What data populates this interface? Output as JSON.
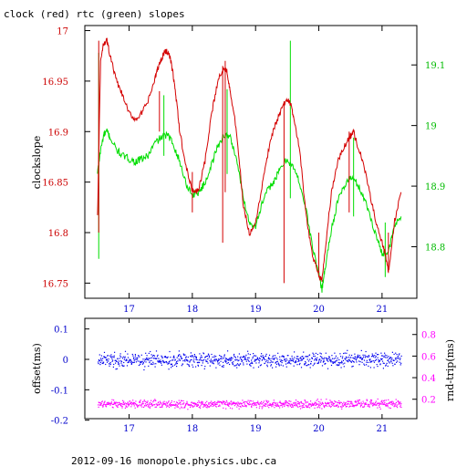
{
  "title": "clock (red) rtc (green) slopes",
  "footer": "2012-09-16  monopole.physics.ubc.ca",
  "colors": {
    "clock": "#d40000",
    "rtc": "#00dd00",
    "offset": "#0000ee",
    "rndtrip": "#ff00ff",
    "left_axis_top": "#cc0000",
    "right_axis_top": "#00bb00",
    "left_axis_bottom": "#0000cc",
    "right_axis_bottom": "#ff00ff",
    "frame": "#000000"
  },
  "chart_data": [
    {
      "type": "line",
      "ylabel": "clockslope",
      "xlim": [
        16.3,
        21.55
      ],
      "ylim": [
        16.735,
        17.005
      ],
      "y2lim": [
        18.715,
        19.165
      ],
      "xticks": [
        17,
        18,
        19,
        20,
        21
      ],
      "yticks": [
        16.75,
        16.8,
        16.85,
        16.9,
        16.95,
        17
      ],
      "ytick_labels": [
        "16.75",
        "16.8",
        "16.85",
        "16.9",
        "16.95",
        "17"
      ],
      "y2ticks": [
        18.8,
        18.9,
        19,
        19.1
      ],
      "y2tick_labels": [
        "18.8",
        "18.9",
        "19",
        "19.1"
      ],
      "grid": false,
      "series": [
        {
          "axis": "left",
          "x": [
            16.5,
            16.55,
            16.6,
            16.65,
            16.7,
            16.8,
            16.9,
            17.0,
            17.1,
            17.2,
            17.3,
            17.4,
            17.45,
            17.5,
            17.55,
            17.6,
            17.65,
            17.7,
            17.75,
            17.8,
            17.9,
            18.0,
            18.05,
            18.1,
            18.2,
            18.3,
            18.4,
            18.5,
            18.55,
            18.6,
            18.7,
            18.8,
            18.9,
            19.0,
            19.1,
            19.2,
            19.3,
            19.4,
            19.5,
            19.55,
            19.6,
            19.7,
            19.8,
            19.9,
            20.0,
            20.05,
            20.1,
            20.2,
            20.3,
            20.4,
            20.5,
            20.55,
            20.6,
            20.7,
            20.8,
            20.9,
            21.0,
            21.05,
            21.1,
            21.2,
            21.3
          ],
          "values": [
            16.815,
            16.97,
            16.988,
            16.99,
            16.975,
            16.95,
            16.935,
            16.918,
            16.912,
            16.918,
            16.93,
            16.95,
            16.962,
            16.97,
            16.978,
            16.98,
            16.973,
            16.955,
            16.93,
            16.9,
            16.865,
            16.842,
            16.84,
            16.843,
            16.87,
            16.915,
            16.95,
            16.963,
            16.96,
            16.94,
            16.9,
            16.83,
            16.798,
            16.808,
            16.845,
            16.88,
            16.905,
            16.92,
            16.932,
            16.928,
            16.915,
            16.88,
            16.815,
            16.778,
            16.758,
            16.752,
            16.782,
            16.84,
            16.87,
            16.885,
            16.896,
            16.9,
            16.888,
            16.87,
            16.84,
            16.812,
            16.79,
            16.78,
            16.76,
            16.812,
            16.84
          ]
        },
        {
          "axis": "right",
          "x": [
            16.5,
            16.55,
            16.6,
            16.65,
            16.7,
            16.8,
            16.9,
            17.0,
            17.1,
            17.2,
            17.3,
            17.4,
            17.5,
            17.6,
            17.7,
            17.8,
            17.9,
            18.0,
            18.1,
            18.2,
            18.3,
            18.4,
            18.5,
            18.6,
            18.7,
            18.8,
            18.9,
            19.0,
            19.1,
            19.2,
            19.3,
            19.4,
            19.5,
            19.6,
            19.7,
            19.8,
            19.9,
            20.0,
            20.05,
            20.1,
            20.2,
            20.3,
            20.4,
            20.5,
            20.6,
            20.7,
            20.8,
            20.9,
            21.0,
            21.1,
            21.2,
            21.3
          ],
          "values": [
            18.92,
            18.96,
            18.985,
            18.99,
            18.98,
            18.96,
            18.95,
            18.945,
            18.94,
            18.945,
            18.95,
            18.97,
            18.98,
            18.985,
            18.97,
            18.94,
            18.905,
            18.885,
            18.89,
            18.905,
            18.935,
            18.965,
            18.985,
            18.98,
            18.945,
            18.885,
            18.84,
            18.835,
            18.87,
            18.895,
            18.91,
            18.93,
            18.945,
            18.93,
            18.905,
            18.86,
            18.8,
            18.755,
            18.73,
            18.765,
            18.83,
            18.875,
            18.9,
            18.915,
            18.905,
            18.885,
            18.855,
            18.82,
            18.79,
            18.79,
            18.835,
            18.85
          ]
        }
      ]
    },
    {
      "type": "scatter",
      "ylabel": "offset(ms)",
      "y2label": "rnd-trip(ms)",
      "xlim": [
        16.3,
        21.55
      ],
      "ylim": [
        -0.195,
        0.135
      ],
      "y2lim": [
        0.02,
        0.95
      ],
      "xticks": [
        17,
        18,
        19,
        20,
        21
      ],
      "yticks": [
        -0.2,
        -0.1,
        0,
        0.1
      ],
      "ytick_labels": [
        "-0.2",
        "-0.1",
        "0",
        "0.1"
      ],
      "y2ticks": [
        0.2,
        0.4,
        0.6,
        0.8
      ],
      "y2tick_labels": [
        "0.2",
        "0.4",
        "0.6",
        "0.8"
      ],
      "grid": false,
      "series": [
        {
          "axis": "left",
          "x_range": [
            16.5,
            21.3
          ],
          "center": 0.0,
          "spread": 0.012
        },
        {
          "axis": "right",
          "x_range": [
            16.5,
            21.3
          ],
          "center": 0.16,
          "spread": 0.018
        }
      ]
    }
  ]
}
